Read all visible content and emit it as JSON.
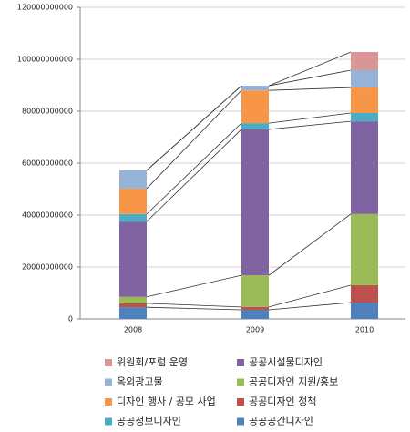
{
  "chart_data": {
    "type": "stacked_bar",
    "categories": [
      "2008",
      "2009",
      "2010"
    ],
    "series": [
      {
        "name": "공공공간디자인",
        "color": "#4f81bd",
        "values": [
          4500000000,
          3500000000,
          6300000000
        ]
      },
      {
        "name": "공공디자인 정책",
        "color": "#c0504d",
        "values": [
          1500000000,
          1100000000,
          6700000000
        ]
      },
      {
        "name": "공공디자인 지원/홍보",
        "color": "#9bbb59",
        "values": [
          2500000000,
          12200000000,
          27400000000
        ]
      },
      {
        "name": "공공시설물디자인",
        "color": "#8064a2",
        "values": [
          29000000000,
          56200000000,
          35700000000
        ]
      },
      {
        "name": "공공정보디자인",
        "color": "#4bacc6",
        "values": [
          2900000000,
          2400000000,
          3200000000
        ]
      },
      {
        "name": "디자인 행사 / 공모 사업",
        "color": "#f79646",
        "values": [
          9800000000,
          12600000000,
          9800000000
        ]
      },
      {
        "name": "옥외광고물",
        "color": "#95b3d7",
        "values": [
          7000000000,
          1800000000,
          6700000000
        ]
      },
      {
        "name": "위원회/포럼 운영",
        "color": "#d99694",
        "values": [
          0,
          0,
          7000000000
        ]
      }
    ],
    "ylim": [
      0,
      120000000000
    ],
    "yticks": [
      0,
      20000000000,
      40000000000,
      60000000000,
      80000000000,
      100000000000,
      120000000000
    ],
    "grid": true,
    "series_lines": true,
    "legend": "bottom"
  }
}
